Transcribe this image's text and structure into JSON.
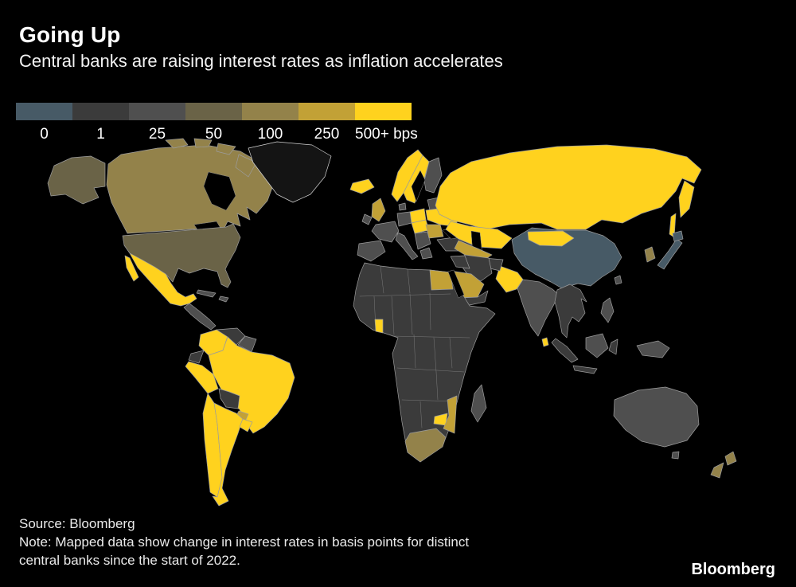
{
  "header": {
    "title": "Going Up",
    "subtitle": "Central banks are raising interest rates as inflation accelerates"
  },
  "footer": {
    "source": "Source: Bloomberg",
    "note_line1": "Note: Mapped data show change in interest rates in basis points for distinct",
    "note_line2": "central banks since the start of 2022.",
    "brand": "Bloomberg"
  },
  "map": {
    "background": "#000000",
    "border_color": "#9c9c9c",
    "no_data_fill": "#141414"
  },
  "chart_data": {
    "type": "heatmap",
    "subtype": "choropleth-world-map",
    "title": "Going Up",
    "subtitle": "Central banks are raising interest rates as inflation accelerates",
    "unit": "change in interest rates in basis points since the start of 2022",
    "legend_position": "top-left",
    "bins": [
      {
        "value": "0",
        "label": "0",
        "color": "#475a66"
      },
      {
        "value": "1",
        "label": "1",
        "color": "#3b3b3b"
      },
      {
        "value": "25",
        "label": "25",
        "color": "#4f4f4f"
      },
      {
        "value": "50",
        "label": "50",
        "color": "#6a6347"
      },
      {
        "value": "100",
        "label": "100",
        "color": "#93824a"
      },
      {
        "value": "250",
        "label": "250",
        "color": "#c2a136"
      },
      {
        "value": "500+",
        "label": "500+ bps",
        "color": "#ffd21e"
      }
    ],
    "regions": {
      "usa": "50",
      "canada": "100",
      "mexico": "500+",
      "central-america": "25",
      "cuba": "25",
      "hispaniola": "25",
      "colombia": "500+",
      "venezuela": "1",
      "guyanas": "25",
      "ecuador": "1",
      "peru": "500+",
      "brazil": "500+",
      "bolivia": "1",
      "paraguay": "250",
      "chile": "500+",
      "argentina": "500+",
      "uruguay": "500+",
      "iceland": "500+",
      "uk": "250",
      "ireland": "25",
      "norway": "500+",
      "sweden": "500+",
      "finland": "25",
      "denmark": "25",
      "baltics-belarus": "25",
      "poland": "500+",
      "germany": "25",
      "france": "25",
      "iberia": "25",
      "italy": "25",
      "central-europe": "500+",
      "balkans": "25",
      "romania-bulgaria": "250",
      "greece": "25",
      "ukraine": "500+",
      "turkey": "1",
      "russia": "500+",
      "kazakhstan": "500+",
      "central-asia": "250",
      "china": "0",
      "mongolia": "500+",
      "south-korea": "100",
      "japan": "0",
      "taiwan": "25",
      "india": "25",
      "pakistan": "500+",
      "sri-lanka": "500+",
      "afghanistan": "1",
      "iran": "1",
      "iraq": "1",
      "saudi-arabia": "250",
      "yemen-oman": "1",
      "egypt": "250",
      "africa-mainland": "1",
      "ghana": "500+",
      "zimbabwe": "500+",
      "mozambique": "250",
      "south-africa": "100",
      "madagascar": "25",
      "indochina": "1",
      "indonesia": "1",
      "borneo": "25",
      "new-guinea": "25",
      "philippines": "25",
      "australia": "25",
      "tasmania": "25",
      "new-zealand": "100"
    }
  }
}
